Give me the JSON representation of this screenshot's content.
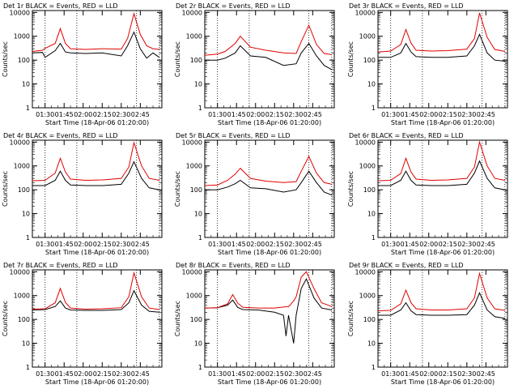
{
  "colors": {
    "events": "#000000",
    "lld": "#e00000",
    "axes": "#000000",
    "background": "#ffffff"
  },
  "common": {
    "ylabel": "Counts/sec",
    "xlabel": "Start Time (18-Apr-06 01:20:00)",
    "xtick_labels": [
      "01:30",
      "01:45",
      "02:00",
      "02:15",
      "02:30",
      "02:45"
    ],
    "ytick_labels": [
      "1",
      "10",
      "100",
      "1000",
      "10000"
    ]
  },
  "chart_data": [
    {
      "type": "line",
      "title": "Det 1r BLACK = Events, RED = LLD",
      "x_minutes_after_0120": [
        0,
        8,
        10,
        18,
        22,
        26,
        30,
        42,
        55,
        70,
        75,
        80,
        85,
        90,
        95,
        100
      ],
      "series": [
        {
          "name": "Events",
          "values": [
            200,
            210,
            130,
            250,
            500,
            220,
            200,
            190,
            200,
            150,
            400,
            1500,
            300,
            120,
            200,
            130
          ]
        },
        {
          "name": "LLD",
          "values": [
            230,
            260,
            310,
            500,
            2100,
            500,
            300,
            280,
            300,
            290,
            800,
            9000,
            1200,
            400,
            300,
            280
          ]
        }
      ],
      "xlim": [
        0,
        102
      ],
      "ylim": [
        1,
        12000
      ],
      "yscale": "log",
      "dotted_vlines_minutes": [
        10,
        35,
        82,
        100
      ]
    },
    {
      "type": "line",
      "title": "Det 2r BLACK = Events, RED = LLD",
      "x_minutes_after_0120": [
        0,
        10,
        16,
        24,
        28,
        36,
        48,
        62,
        72,
        76,
        82,
        88,
        94,
        100
      ],
      "series": [
        {
          "name": "Events",
          "values": [
            100,
            100,
            120,
            200,
            400,
            150,
            130,
            60,
            70,
            200,
            500,
            150,
            60,
            40
          ]
        },
        {
          "name": "LLD",
          "values": [
            160,
            180,
            230,
            500,
            1000,
            350,
            260,
            200,
            190,
            600,
            2900,
            450,
            190,
            170
          ]
        }
      ],
      "xlim": [
        0,
        102
      ],
      "ylim": [
        1,
        12000
      ],
      "yscale": "log",
      "dotted_vlines_minutes": [
        10,
        35,
        82,
        100
      ]
    },
    {
      "type": "line",
      "title": "Det 3r BLACK = Events, RED = LLD",
      "x_minutes_after_0120": [
        0,
        10,
        18,
        22,
        26,
        30,
        42,
        55,
        70,
        76,
        80,
        86,
        92,
        100
      ],
      "series": [
        {
          "name": "Events",
          "values": [
            130,
            130,
            200,
            500,
            220,
            140,
            130,
            130,
            150,
            400,
            1200,
            200,
            100,
            90
          ]
        },
        {
          "name": "LLD",
          "values": [
            220,
            240,
            450,
            1900,
            520,
            260,
            240,
            250,
            290,
            800,
            9500,
            900,
            280,
            230
          ]
        }
      ],
      "xlim": [
        0,
        102
      ],
      "ylim": [
        1,
        12000
      ],
      "yscale": "log",
      "dotted_vlines_minutes": [
        10,
        35,
        82,
        100
      ]
    },
    {
      "type": "line",
      "title": "Det 4r BLACK = Events, RED = LLD",
      "x_minutes_after_0120": [
        0,
        10,
        18,
        22,
        26,
        30,
        42,
        55,
        70,
        76,
        80,
        86,
        92,
        100
      ],
      "series": [
        {
          "name": "Events",
          "values": [
            150,
            150,
            250,
            600,
            250,
            160,
            150,
            150,
            170,
            500,
            1500,
            300,
            120,
            100
          ]
        },
        {
          "name": "LLD",
          "values": [
            240,
            250,
            500,
            2100,
            560,
            280,
            250,
            260,
            300,
            900,
            9500,
            1000,
            300,
            250
          ]
        }
      ],
      "xlim": [
        0,
        102
      ],
      "ylim": [
        1,
        12000
      ],
      "yscale": "log",
      "dotted_vlines_minutes": [
        10,
        35,
        82,
        100
      ]
    },
    {
      "type": "line",
      "title": "Det 5r BLACK = Events, RED = LLD",
      "x_minutes_after_0120": [
        0,
        10,
        18,
        24,
        28,
        36,
        48,
        62,
        72,
        76,
        82,
        88,
        94,
        100
      ],
      "series": [
        {
          "name": "Events",
          "values": [
            100,
            100,
            130,
            180,
            250,
            120,
            110,
            80,
            100,
            200,
            600,
            200,
            80,
            60
          ]
        },
        {
          "name": "LLD",
          "values": [
            150,
            160,
            250,
            450,
            800,
            300,
            230,
            200,
            220,
            600,
            2500,
            500,
            200,
            170
          ]
        }
      ],
      "xlim": [
        0,
        102
      ],
      "ylim": [
        1,
        12000
      ],
      "yscale": "log",
      "dotted_vlines_minutes": [
        10,
        35,
        82,
        100
      ]
    },
    {
      "type": "line",
      "title": "Det 6r BLACK = Events, RED = LLD",
      "x_minutes_after_0120": [
        0,
        10,
        18,
        22,
        26,
        30,
        42,
        55,
        70,
        76,
        80,
        86,
        92,
        100
      ],
      "series": [
        {
          "name": "Events",
          "values": [
            150,
            150,
            250,
            600,
            250,
            160,
            150,
            150,
            170,
            500,
            1600,
            300,
            120,
            100
          ]
        },
        {
          "name": "LLD",
          "values": [
            240,
            250,
            480,
            2100,
            560,
            280,
            250,
            260,
            300,
            900,
            10000,
            1000,
            300,
            250
          ]
        }
      ],
      "xlim": [
        0,
        102
      ],
      "ylim": [
        1,
        12000
      ],
      "yscale": "log",
      "dotted_vlines_minutes": [
        10,
        35,
        82,
        100
      ]
    },
    {
      "type": "line",
      "title": "Det 7r BLACK = Events, RED = LLD",
      "x_minutes_after_0120": [
        0,
        10,
        18,
        22,
        26,
        30,
        42,
        55,
        70,
        76,
        80,
        86,
        92,
        100
      ],
      "series": [
        {
          "name": "Events",
          "values": [
            250,
            260,
            350,
            600,
            300,
            250,
            240,
            240,
            260,
            500,
            1600,
            400,
            220,
            200
          ]
        },
        {
          "name": "LLD",
          "values": [
            270,
            280,
            500,
            2000,
            520,
            300,
            270,
            280,
            310,
            900,
            9000,
            900,
            300,
            260
          ]
        }
      ],
      "xlim": [
        0,
        102
      ],
      "ylim": [
        1,
        12000
      ],
      "yscale": "log",
      "dotted_vlines_minutes": [
        10,
        35,
        82,
        100
      ]
    },
    {
      "type": "line",
      "title": "Det 8r BLACK = Events, RED = LLD",
      "x_minutes_after_0120": [
        0,
        10,
        18,
        22,
        26,
        30,
        42,
        55,
        62,
        64,
        66,
        70,
        72,
        76,
        80,
        86,
        92,
        100
      ],
      "series": [
        {
          "name": "Events",
          "values": [
            300,
            310,
            400,
            650,
            320,
            260,
            250,
            200,
            150,
            20,
            150,
            10,
            150,
            2000,
            5000,
            800,
            300,
            250
          ]
        },
        {
          "name": "LLD",
          "values": [
            300,
            310,
            450,
            1100,
            480,
            320,
            300,
            300,
            330,
            350,
            340,
            600,
            900,
            6000,
            10000,
            2000,
            500,
            350
          ]
        }
      ],
      "xlim": [
        0,
        102
      ],
      "ylim": [
        1,
        12000
      ],
      "yscale": "log",
      "dotted_vlines_minutes": [
        10,
        35,
        82,
        100
      ]
    },
    {
      "type": "line",
      "title": "Det 9r BLACK = Events, RED = LLD",
      "x_minutes_after_0120": [
        0,
        10,
        18,
        22,
        26,
        30,
        42,
        55,
        70,
        76,
        80,
        86,
        92,
        100
      ],
      "series": [
        {
          "name": "Events",
          "values": [
            150,
            150,
            250,
            500,
            230,
            160,
            150,
            150,
            160,
            400,
            1300,
            250,
            130,
            110
          ]
        },
        {
          "name": "LLD",
          "values": [
            230,
            240,
            450,
            1700,
            500,
            280,
            250,
            250,
            280,
            800,
            8500,
            800,
            280,
            240
          ]
        }
      ],
      "xlim": [
        0,
        102
      ],
      "ylim": [
        1,
        12000
      ],
      "yscale": "log",
      "dotted_vlines_minutes": [
        10,
        35,
        82,
        100
      ]
    }
  ]
}
